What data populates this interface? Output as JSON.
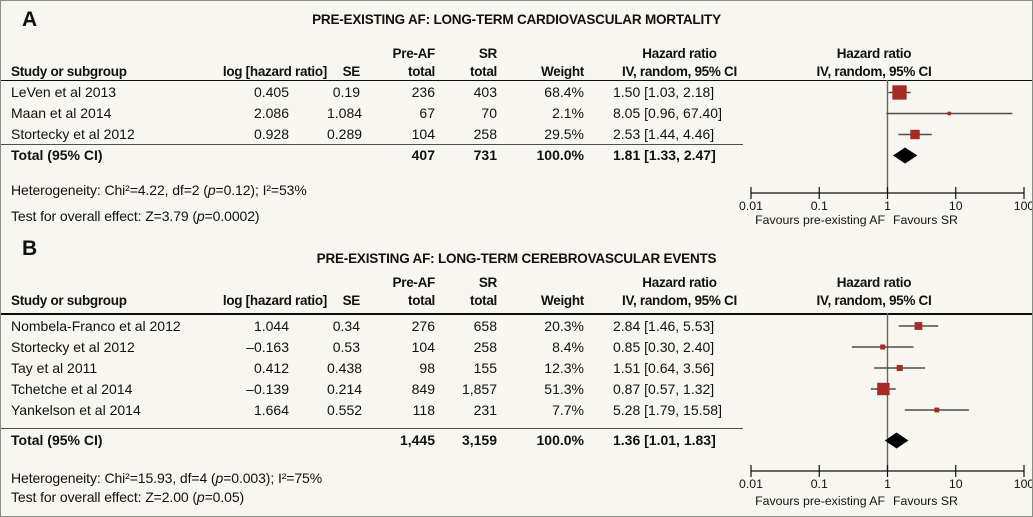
{
  "colors": {
    "background": "#f7f6f0",
    "marker": "#a62b22",
    "diamond": "#000000",
    "ci_line": "#4d4d4d",
    "axis": "#111111",
    "no_effect_line": "#67675f",
    "border": "#8d8d88"
  },
  "axis": {
    "scale": "log",
    "ticks": [
      "0.01",
      "0.1",
      "1",
      "10",
      "100"
    ],
    "tick_values": [
      0.01,
      0.1,
      1,
      10,
      100
    ],
    "favours_left": "Favours pre-existing AF",
    "favours_right": "Favours SR"
  },
  "columns": {
    "study": "Study or subgroup",
    "log_hr": "log [hazard ratio]",
    "se": "SE",
    "group1_line1": "Pre-AF",
    "group1_line2": "total",
    "group2_line1": "SR",
    "group2_line2": "total",
    "weight": "Weight",
    "hr_line1": "Hazard ratio",
    "hr_line2": "IV, random, 95% CI"
  },
  "chart_data": [
    {
      "type": "forest",
      "panel_label": "A",
      "title": "PRE-EXISTING AF: LONG-TERM CARDIOVASCULAR MORTALITY",
      "x_scale": "log",
      "xlim": [
        0.01,
        100
      ],
      "studies": [
        {
          "name": "LeVen et al 2013",
          "log_hr": "0.405",
          "se": "0.19",
          "pre_af_total": "236",
          "sr_total": "403",
          "weight": "68.4%",
          "hr_ci": "1.50 [1.03, 2.18]",
          "hr": 1.5,
          "ci_low": 1.03,
          "ci_high": 2.18,
          "weight_pct": 68.4
        },
        {
          "name": "Maan et al 2014",
          "log_hr": "2.086",
          "se": "1.084",
          "pre_af_total": "67",
          "sr_total": "70",
          "weight": "2.1%",
          "hr_ci": "8.05 [0.96, 67.40]",
          "hr": 8.05,
          "ci_low": 0.96,
          "ci_high": 67.4,
          "weight_pct": 2.1
        },
        {
          "name": "Stortecky et al 2012",
          "log_hr": "0.928",
          "se": "0.289",
          "pre_af_total": "104",
          "sr_total": "258",
          "weight": "29.5%",
          "hr_ci": "2.53 [1.44, 4.46]",
          "hr": 2.53,
          "ci_low": 1.44,
          "ci_high": 4.46,
          "weight_pct": 29.5
        }
      ],
      "total": {
        "name": "Total (95% CI)",
        "pre_af_total": "407",
        "sr_total": "731",
        "weight": "100.0%",
        "hr_ci": "1.81 [1.33, 2.47]",
        "hr": 1.81,
        "ci_low": 1.33,
        "ci_high": 2.47
      },
      "heterogeneity_parts": [
        "Heterogeneity: Chi²=4.22, df=2 (",
        "p",
        "=0.12); I²=53%"
      ],
      "overall_effect_parts": [
        "Test for overall effect: Z=3.79 (",
        "p",
        "=0.0002)"
      ]
    },
    {
      "type": "forest",
      "panel_label": "B",
      "title": "PRE-EXISTING AF: LONG-TERM CEREBROVASCULAR EVENTS",
      "x_scale": "log",
      "xlim": [
        0.01,
        100
      ],
      "studies": [
        {
          "name": "Nombela-Franco et al 2012",
          "log_hr": "1.044",
          "se": "0.34",
          "pre_af_total": "276",
          "sr_total": "658",
          "weight": "20.3%",
          "hr_ci": "2.84 [1.46, 5.53]",
          "hr": 2.84,
          "ci_low": 1.46,
          "ci_high": 5.53,
          "weight_pct": 20.3
        },
        {
          "name": "Stortecky et al 2012",
          "log_hr": "–0.163",
          "se": "0.53",
          "pre_af_total": "104",
          "sr_total": "258",
          "weight": "8.4%",
          "hr_ci": "0.85 [0.30, 2.40]",
          "hr": 0.85,
          "ci_low": 0.3,
          "ci_high": 2.4,
          "weight_pct": 8.4
        },
        {
          "name": "Tay et al 2011",
          "log_hr": "0.412",
          "se": "0.438",
          "pre_af_total": "98",
          "sr_total": "155",
          "weight": "12.3%",
          "hr_ci": "1.51 [0.64, 3.56]",
          "hr": 1.51,
          "ci_low": 0.64,
          "ci_high": 3.56,
          "weight_pct": 12.3
        },
        {
          "name": "Tchetche et al 2014",
          "log_hr": "–0.139",
          "se": "0.214",
          "pre_af_total": "849",
          "sr_total": "1,857",
          "weight": "51.3%",
          "hr_ci": "0.87 [0.57, 1.32]",
          "hr": 0.87,
          "ci_low": 0.57,
          "ci_high": 1.32,
          "weight_pct": 51.3
        },
        {
          "name": "Yankelson et al 2014",
          "log_hr": "1.664",
          "se": "0.552",
          "pre_af_total": "118",
          "sr_total": "231",
          "weight": "7.7%",
          "hr_ci": "5.28 [1.79, 15.58]",
          "hr": 5.28,
          "ci_low": 1.79,
          "ci_high": 15.58,
          "weight_pct": 7.7
        }
      ],
      "total": {
        "name": "Total (95% CI)",
        "pre_af_total": "1,445",
        "sr_total": "3,159",
        "weight": "100.0%",
        "hr_ci": "1.36 [1.01, 1.83]",
        "hr": 1.36,
        "ci_low": 1.01,
        "ci_high": 1.83
      },
      "heterogeneity_parts": [
        "Heterogeneity: Chi²=15.93, df=4 (",
        "p",
        "=0.003); I²=75%"
      ],
      "overall_effect_parts": [
        "Test for overall effect: Z=2.00 (",
        "p",
        "=0.05)"
      ]
    }
  ]
}
